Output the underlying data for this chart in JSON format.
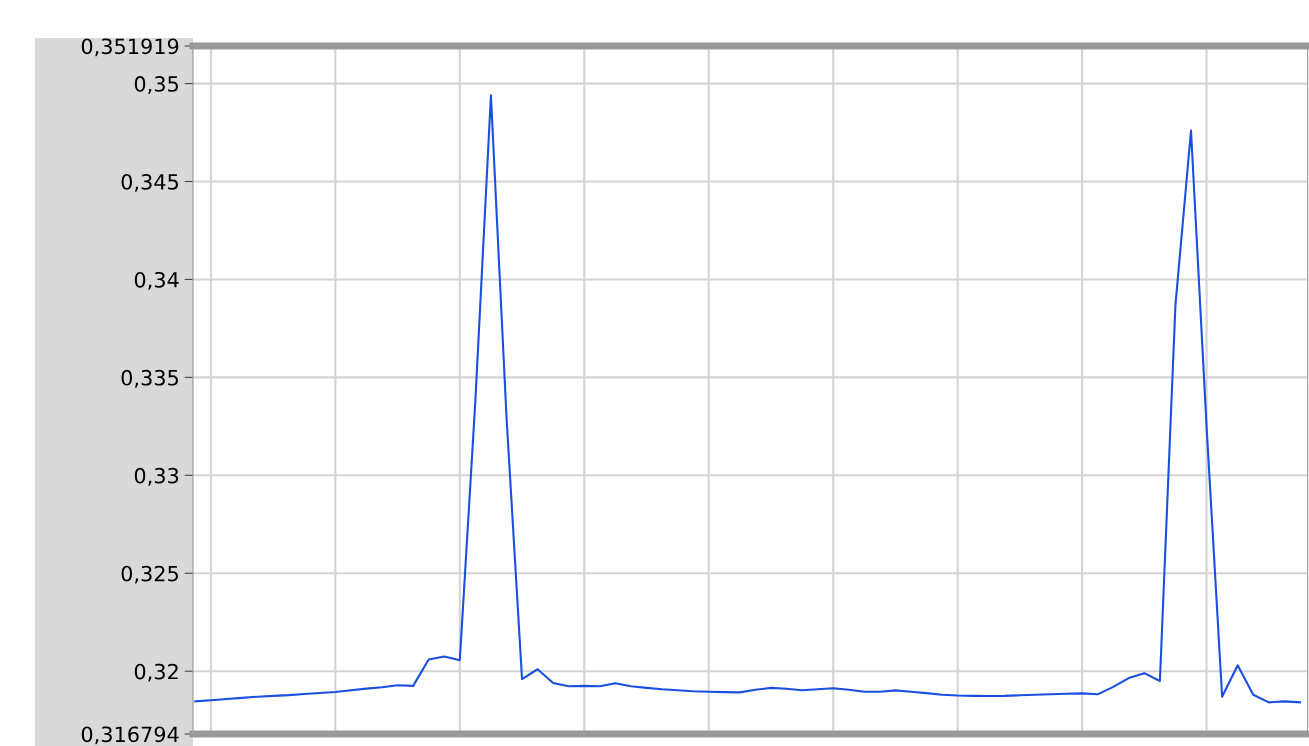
{
  "chart_data": {
    "type": "line",
    "categories": [
      null,
      null,
      null,
      null,
      null,
      null,
      null,
      null,
      null,
      null,
      null,
      null,
      null,
      null,
      null,
      null,
      null,
      null,
      null,
      null,
      null,
      null,
      null,
      null,
      null,
      null,
      null,
      null,
      null,
      null,
      null,
      null,
      null,
      null,
      null,
      null,
      null,
      null,
      null,
      null,
      null,
      null,
      null,
      null,
      null,
      null,
      null,
      null,
      null,
      null,
      null,
      null,
      null,
      null,
      null,
      null,
      null,
      null,
      null,
      null,
      null,
      null,
      null,
      null,
      null,
      null,
      null,
      null,
      null,
      null,
      null,
      null
    ],
    "series": [
      {
        "color": "#1a4fe0",
        "values": [
          0.31846,
          0.31852,
          0.31858,
          0.31864,
          0.3187,
          0.31874,
          0.31878,
          0.31884,
          0.31889,
          0.31894,
          0.31903,
          0.31911,
          0.31918,
          0.31928,
          0.31925,
          0.3206,
          0.32075,
          0.32056,
          0.3338,
          0.3494,
          0.333,
          0.3196,
          0.3201,
          0.3194,
          0.31923,
          0.31925,
          0.31923,
          0.31938,
          0.31923,
          0.31915,
          0.31908,
          0.31903,
          0.31898,
          0.31895,
          0.31893,
          0.31892,
          0.31905,
          0.31915,
          0.3191,
          0.31903,
          0.31908,
          0.31913,
          0.31905,
          0.31895,
          0.31895,
          0.31902,
          0.31895,
          0.31888,
          0.3188,
          0.31876,
          0.31874,
          0.31873,
          0.31874,
          0.31877,
          0.3188,
          0.31882,
          0.31885,
          0.31887,
          0.31882,
          0.3192,
          0.31965,
          0.3199,
          0.3195,
          0.3387,
          0.3476,
          0.3325,
          0.3187,
          0.3203,
          0.3188,
          0.31841,
          0.31846,
          0.31841
        ]
      }
    ],
    "ylim": [
      0.316794,
      0.351919
    ],
    "yticks": [
      {
        "value": 0.316794,
        "label": "0,316794"
      },
      {
        "value": 0.32,
        "label": "0,32"
      },
      {
        "value": 0.325,
        "label": "0,325"
      },
      {
        "value": 0.33,
        "label": "0,33"
      },
      {
        "value": 0.335,
        "label": "0,335"
      },
      {
        "value": 0.34,
        "label": "0,34"
      },
      {
        "value": 0.345,
        "label": "0,345"
      },
      {
        "value": 0.35,
        "label": "0,35"
      },
      {
        "value": 0.351919,
        "label": "0,351919"
      }
    ],
    "tick_labels": "y",
    "grid": true,
    "legend": false,
    "marker": "none",
    "line_style": "solid"
  }
}
